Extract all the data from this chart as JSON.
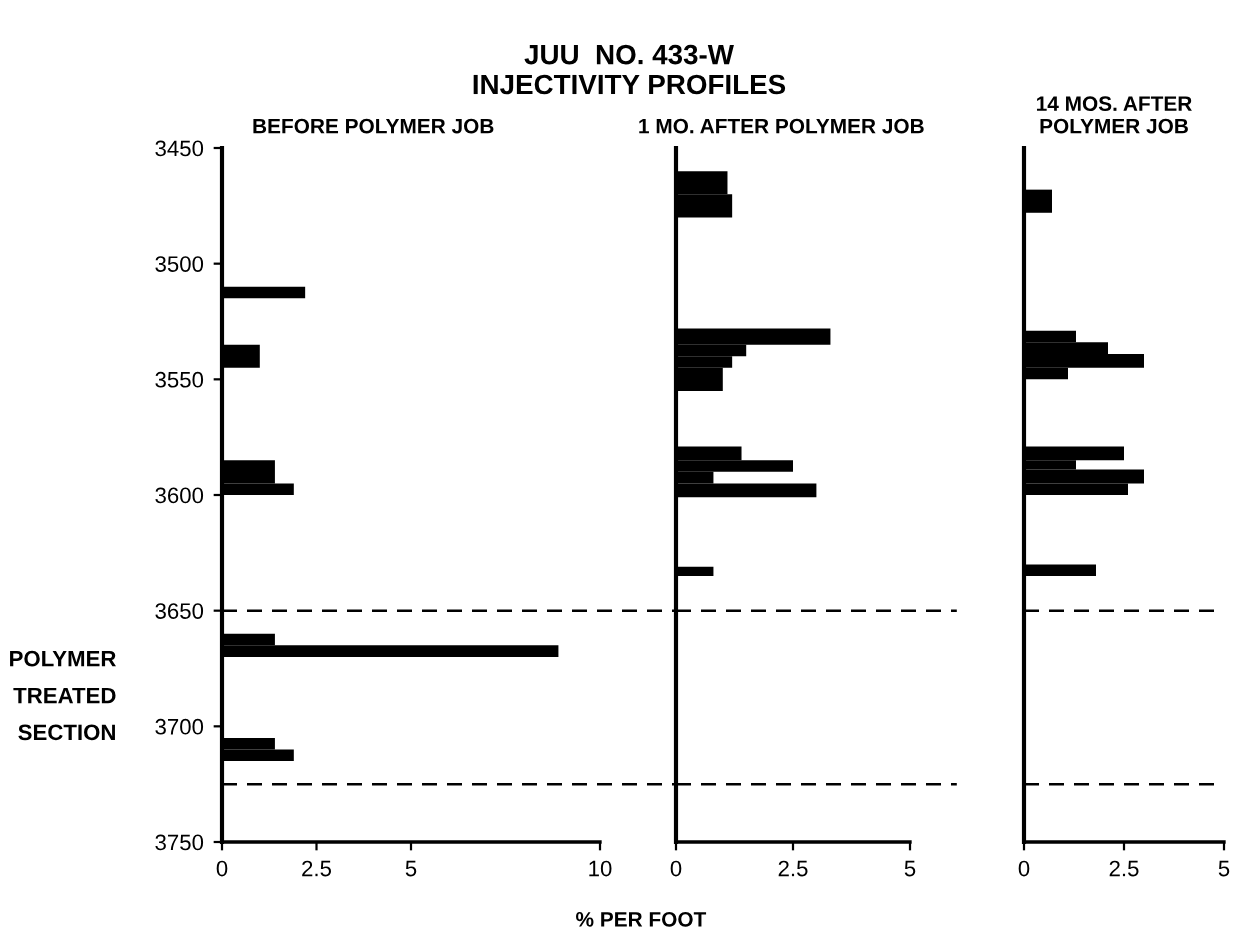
{
  "chart_data": [
    {
      "type": "histogram",
      "orientation": "horizontal",
      "title": "JUU  NO. 433-W\nINJECTIVITY PROFILES",
      "subtitle": "BEFORE POLYMER JOB",
      "color": "#000000",
      "bins": [
        3510,
        3515,
        3535,
        3545,
        3585,
        3595,
        3600,
        3660,
        3665,
        3670,
        3705,
        3710,
        3715
      ],
      "values": [
        2.2,
        0,
        1.0,
        0,
        1.4,
        1.9,
        0,
        1.4,
        8.9,
        0,
        1.4,
        1.9
      ],
      "xlim": [
        0,
        10
      ],
      "xticks": [
        0,
        2.5,
        5,
        10
      ],
      "ylim": [
        3750,
        3450
      ],
      "yticks": [
        3450,
        3500,
        3550,
        3600,
        3650,
        3700,
        3750
      ],
      "ref_lines": [
        {
          "axis": "y",
          "value": 3650,
          "line_style": "dashed"
        },
        {
          "axis": "y",
          "value": 3725,
          "line_style": "dashed"
        }
      ],
      "annotations": [
        "POLYMER\nTREATED\nSECTION"
      ]
    },
    {
      "type": "histogram",
      "orientation": "horizontal",
      "subtitle": "1 MO. AFTER POLYMER JOB",
      "xlabel": "% PER FOOT",
      "color": "#000000",
      "bins": [
        3460,
        3470,
        3480,
        3528,
        3535,
        3540,
        3545,
        3555,
        3579,
        3585,
        3590,
        3595,
        3601,
        3631,
        3635
      ],
      "values": [
        1.1,
        1.2,
        0,
        3.3,
        1.5,
        1.2,
        1.0,
        0,
        1.4,
        2.5,
        0.8,
        3.0,
        0,
        0.8
      ],
      "xlim": [
        0,
        5
      ],
      "xticks": [
        0,
        2.5,
        5
      ],
      "ylim": [
        3750,
        3450
      ],
      "tick_labels": "x",
      "ref_lines": [
        {
          "axis": "y",
          "value": 3650,
          "line_style": "dashed"
        },
        {
          "axis": "y",
          "value": 3725,
          "line_style": "dashed"
        }
      ]
    },
    {
      "type": "histogram",
      "orientation": "horizontal",
      "subtitle": "14 MOS. AFTER\nPOLYMER JOB",
      "color": "#000000",
      "bins": [
        3468,
        3478,
        3529,
        3534,
        3539,
        3545,
        3550,
        3579,
        3585,
        3589,
        3595,
        3600,
        3630,
        3635
      ],
      "values": [
        0.7,
        0,
        1.3,
        2.1,
        3.0,
        1.1,
        0,
        2.5,
        1.3,
        3.0,
        2.6,
        0,
        1.8
      ],
      "xlim": [
        0,
        5
      ],
      "xticks": [
        0,
        2.5,
        5
      ],
      "ylim": [
        3750,
        3450
      ],
      "tick_labels": "x",
      "ref_lines": [
        {
          "axis": "y",
          "value": 3650,
          "line_style": "dashed"
        },
        {
          "axis": "y",
          "value": 3725,
          "line_style": "dashed"
        }
      ]
    }
  ]
}
